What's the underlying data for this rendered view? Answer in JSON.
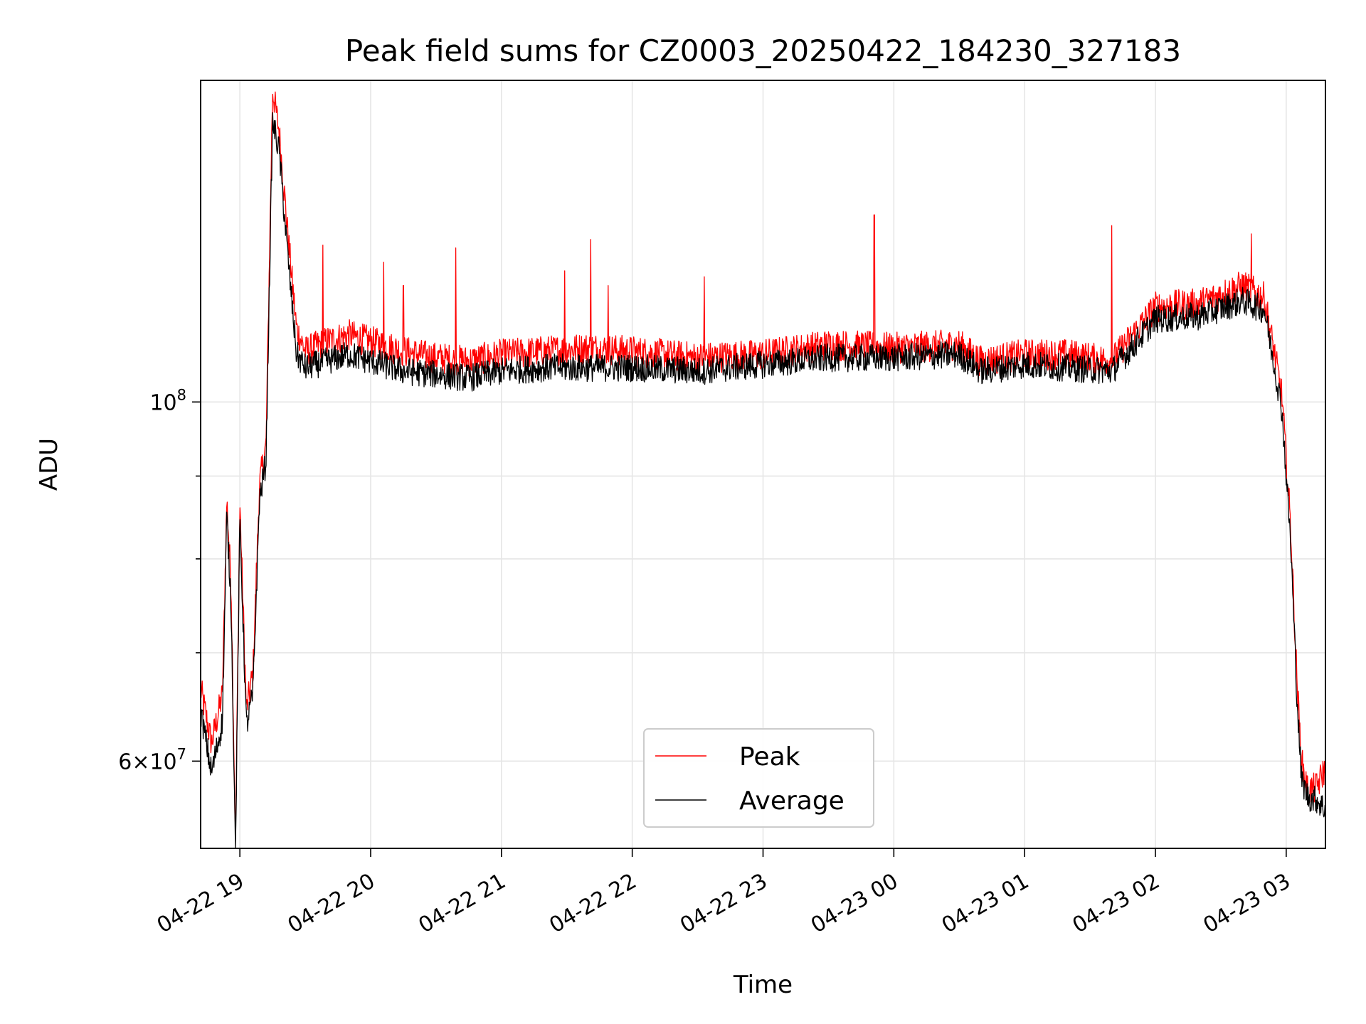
{
  "chart_data": {
    "type": "line",
    "title": "Peak field sums for CZ0003_20250422_184230_327183",
    "xlabel": "Time",
    "ylabel": "ADU",
    "y_scale": "log",
    "x_range": [
      "2025-04-22 18:42",
      "2025-04-23 03:18"
    ],
    "ylim": [
      53000000,
      158000000
    ],
    "x_ticks": [
      {
        "value": "2025-04-22 19:00",
        "label": "04-22 19"
      },
      {
        "value": "2025-04-22 20:00",
        "label": "04-22 20"
      },
      {
        "value": "2025-04-22 21:00",
        "label": "04-22 21"
      },
      {
        "value": "2025-04-22 22:00",
        "label": "04-22 22"
      },
      {
        "value": "2025-04-22 23:00",
        "label": "04-22 23"
      },
      {
        "value": "2025-04-23 00:00",
        "label": "04-23 00"
      },
      {
        "value": "2025-04-23 01:00",
        "label": "04-23 01"
      },
      {
        "value": "2025-04-23 02:00",
        "label": "04-23 02"
      },
      {
        "value": "2025-04-23 03:00",
        "label": "04-23 03"
      }
    ],
    "y_ticks_major": [
      {
        "value": 60000000,
        "label_mantissa": "6",
        "label_exponent": "7",
        "label_style": "mantissa-times-power"
      },
      {
        "value": 100000000,
        "label_mantissa": "",
        "label_exponent": "8",
        "label_style": "power"
      }
    ],
    "y_ticks_minor": [
      70000000,
      80000000,
      90000000
    ],
    "grid": true,
    "legend": {
      "position": "lower-center",
      "entries": [
        "Peak",
        "Average"
      ]
    },
    "series": [
      {
        "name": "Peak",
        "color": "#ff0000",
        "points": [
          [
            "2025-04-22 18:42",
            66500000
          ],
          [
            "2025-04-22 18:47",
            61500000
          ],
          [
            "2025-04-22 18:52",
            66000000
          ],
          [
            "2025-04-22 18:54",
            87000000
          ],
          [
            "2025-04-22 18:56",
            77000000
          ],
          [
            "2025-04-22 18:58",
            53500000
          ],
          [
            "2025-04-22 19:00",
            86500000
          ],
          [
            "2025-04-22 19:03",
            64500000
          ],
          [
            "2025-04-22 19:06",
            68000000
          ],
          [
            "2025-04-22 19:09",
            89000000
          ],
          [
            "2025-04-22 19:12",
            94000000
          ],
          [
            "2025-04-22 19:15",
            156000000
          ],
          [
            "2025-04-22 19:18",
            147000000
          ],
          [
            "2025-04-22 19:22",
            127000000
          ],
          [
            "2025-04-22 19:26",
            111000000
          ],
          [
            "2025-04-22 19:30",
            107500000
          ],
          [
            "2025-04-22 19:40",
            109000000
          ],
          [
            "2025-04-22 19:50",
            110000000
          ],
          [
            "2025-04-22 20:00",
            109000000
          ],
          [
            "2025-04-22 20:15",
            107500000
          ],
          [
            "2025-04-22 20:30",
            106500000
          ],
          [
            "2025-04-22 20:45",
            106000000
          ],
          [
            "2025-04-22 21:00",
            107000000
          ],
          [
            "2025-04-22 21:20",
            107500000
          ],
          [
            "2025-04-22 21:40",
            108000000
          ],
          [
            "2025-04-22 22:00",
            107500000
          ],
          [
            "2025-04-22 22:30",
            106500000
          ],
          [
            "2025-04-22 23:00",
            107000000
          ],
          [
            "2025-04-22 23:30",
            108500000
          ],
          [
            "2025-04-23 00:00",
            108000000
          ],
          [
            "2025-04-23 00:30",
            108500000
          ],
          [
            "2025-04-23 00:40",
            106000000
          ],
          [
            "2025-04-23 01:00",
            107000000
          ],
          [
            "2025-04-23 01:20",
            107000000
          ],
          [
            "2025-04-23 01:40",
            106000000
          ],
          [
            "2025-04-23 02:00",
            114500000
          ],
          [
            "2025-04-23 02:20",
            115000000
          ],
          [
            "2025-04-23 02:40",
            118000000
          ],
          [
            "2025-04-23 02:50",
            116000000
          ],
          [
            "2025-04-23 02:58",
            101000000
          ],
          [
            "2025-04-23 03:02",
            84000000
          ],
          [
            "2025-04-23 03:05",
            67000000
          ],
          [
            "2025-04-23 03:07",
            60000000
          ],
          [
            "2025-04-23 03:10",
            57500000
          ],
          [
            "2025-04-23 03:14",
            57800000
          ],
          [
            "2025-04-23 03:18",
            59500000
          ]
        ],
        "spikes": [
          [
            "2025-04-22 19:38",
            125000000
          ],
          [
            "2025-04-22 20:06",
            122000000
          ],
          [
            "2025-04-22 20:15",
            118000000
          ],
          [
            "2025-04-22 20:39",
            124500000
          ],
          [
            "2025-04-22 21:29",
            120500000
          ],
          [
            "2025-04-22 21:41",
            126000000
          ],
          [
            "2025-04-22 21:49",
            118000000
          ],
          [
            "2025-04-22 22:33",
            119500000
          ],
          [
            "2025-04-22 23:51",
            130500000
          ],
          [
            "2025-04-23 01:40",
            128500000
          ],
          [
            "2025-04-23 02:44",
            127000000
          ]
        ]
      },
      {
        "name": "Average",
        "color": "#000000",
        "points": [
          [
            "2025-04-22 18:42",
            64500000
          ],
          [
            "2025-04-22 18:47",
            59000000
          ],
          [
            "2025-04-22 18:52",
            63500000
          ],
          [
            "2025-04-22 18:54",
            85000000
          ],
          [
            "2025-04-22 18:56",
            75000000
          ],
          [
            "2025-04-22 18:58",
            52500000
          ],
          [
            "2025-04-22 19:00",
            84500000
          ],
          [
            "2025-04-22 19:03",
            63000000
          ],
          [
            "2025-04-22 19:06",
            66000000
          ],
          [
            "2025-04-22 19:09",
            87000000
          ],
          [
            "2025-04-22 19:12",
            92000000
          ],
          [
            "2025-04-22 19:15",
            149000000
          ],
          [
            "2025-04-22 19:18",
            143000000
          ],
          [
            "2025-04-22 19:22",
            123000000
          ],
          [
            "2025-04-22 19:26",
            107000000
          ],
          [
            "2025-04-22 19:30",
            105000000
          ],
          [
            "2025-04-22 19:40",
            106000000
          ],
          [
            "2025-04-22 19:50",
            107000000
          ],
          [
            "2025-04-22 20:00",
            106000000
          ],
          [
            "2025-04-22 20:15",
            104500000
          ],
          [
            "2025-04-22 20:30",
            104000000
          ],
          [
            "2025-04-22 20:45",
            103500000
          ],
          [
            "2025-04-22 21:00",
            104500000
          ],
          [
            "2025-04-22 21:20",
            105000000
          ],
          [
            "2025-04-22 21:40",
            105000000
          ],
          [
            "2025-04-22 22:00",
            105000000
          ],
          [
            "2025-04-22 22:30",
            104500000
          ],
          [
            "2025-04-22 23:00",
            105500000
          ],
          [
            "2025-04-22 23:30",
            106500000
          ],
          [
            "2025-04-23 00:00",
            106500000
          ],
          [
            "2025-04-23 00:30",
            107000000
          ],
          [
            "2025-04-23 00:40",
            104500000
          ],
          [
            "2025-04-23 01:00",
            105500000
          ],
          [
            "2025-04-23 01:20",
            105000000
          ],
          [
            "2025-04-23 01:40",
            104500000
          ],
          [
            "2025-04-23 02:00",
            112500000
          ],
          [
            "2025-04-23 02:20",
            113000000
          ],
          [
            "2025-04-23 02:40",
            115500000
          ],
          [
            "2025-04-23 02:50",
            114000000
          ],
          [
            "2025-04-23 02:58",
            99000000
          ],
          [
            "2025-04-23 03:02",
            82000000
          ],
          [
            "2025-04-23 03:05",
            65500000
          ],
          [
            "2025-04-23 03:07",
            58500000
          ],
          [
            "2025-04-23 03:10",
            57000000
          ],
          [
            "2025-04-23 03:14",
            56800000
          ],
          [
            "2025-04-23 03:18",
            56000000
          ]
        ]
      }
    ]
  }
}
